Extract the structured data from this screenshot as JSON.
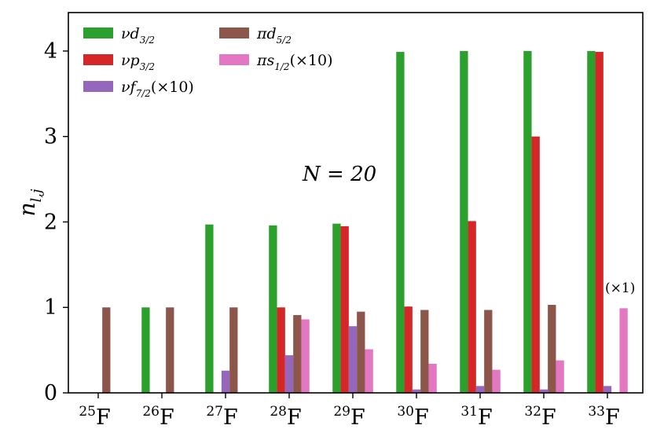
{
  "chart_data": {
    "type": "bar",
    "ylabel": "n_{l,j}",
    "ylim": [
      0,
      4.45
    ],
    "yticks": [
      0,
      1,
      2,
      3,
      4
    ],
    "categories": [
      {
        "mass": "25",
        "element": "F"
      },
      {
        "mass": "26",
        "element": "F"
      },
      {
        "mass": "27",
        "element": "F"
      },
      {
        "mass": "28",
        "element": "F"
      },
      {
        "mass": "29",
        "element": "F"
      },
      {
        "mass": "30",
        "element": "F"
      },
      {
        "mass": "31",
        "element": "F"
      },
      {
        "mass": "32",
        "element": "F"
      },
      {
        "mass": "33",
        "element": "F"
      }
    ],
    "series": [
      {
        "key": "nu_d32",
        "base": "νd",
        "sub": "3/2",
        "suffix": "",
        "color": "#2ca02c",
        "values": [
          0,
          1.0,
          1.97,
          1.96,
          1.98,
          3.99,
          4.0,
          4.0,
          4.0
        ]
      },
      {
        "key": "nu_p32",
        "base": "νp",
        "sub": "3/2",
        "suffix": "",
        "color": "#d62728",
        "values": [
          0,
          0,
          0,
          1.0,
          1.95,
          1.01,
          2.01,
          3.0,
          3.99
        ]
      },
      {
        "key": "nu_f72",
        "base": "νf",
        "sub": "7/2",
        "suffix": "(×10)",
        "color": "#9467bd",
        "values": [
          0,
          0,
          0.26,
          0.44,
          0.78,
          0.04,
          0.08,
          0.04,
          0.08
        ]
      },
      {
        "key": "pi_d52",
        "base": "πd",
        "sub": "5/2",
        "suffix": "",
        "color": "#8c564b",
        "values": [
          1.0,
          1.0,
          1.0,
          0.91,
          0.95,
          0.97,
          0.97,
          1.03,
          0
        ]
      },
      {
        "key": "pi_s12",
        "base": "πs",
        "sub": "1/2",
        "suffix": "(×10)",
        "color": "#e377c2",
        "values": [
          0,
          0,
          0,
          0.86,
          0.51,
          0.34,
          0.27,
          0.38,
          0.99
        ]
      }
    ],
    "legend": {
      "placement": "top-left",
      "columns": 2,
      "order": [
        "nu_d32",
        "nu_p32",
        "nu_f72",
        "pi_d52",
        "pi_s12"
      ]
    },
    "annotations": {
      "n_label": "N = 20",
      "scale_note": "(×1)"
    },
    "grid": false
  }
}
